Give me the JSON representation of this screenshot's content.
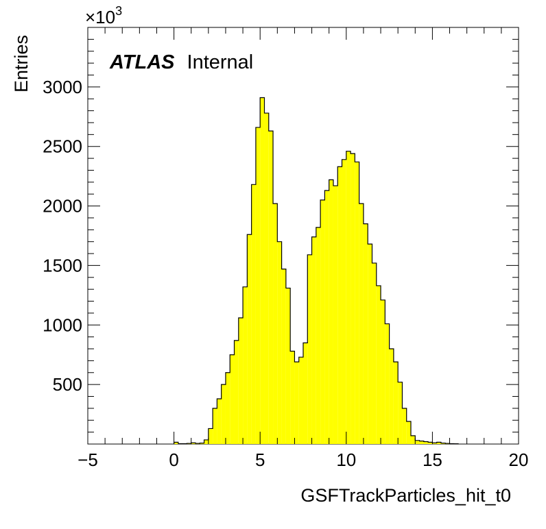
{
  "chart_data": {
    "type": "bar",
    "title": "",
    "xlabel": "GSFTrackParticles_hit_t0",
    "ylabel": "Entries",
    "y_multiplier_label": "×10",
    "y_multiplier_exp": "3",
    "label_bold": "ATLAS",
    "label_normal": "Internal",
    "xlim": [
      -5,
      20
    ],
    "ylim": [
      0,
      3500
    ],
    "bin_width": 0.25,
    "x_ticks": [
      -5,
      0,
      5,
      10,
      15,
      20
    ],
    "x_tick_labels": [
      "−5",
      "0",
      "5",
      "10",
      "15",
      "20"
    ],
    "y_ticks": [
      500,
      1000,
      1500,
      2000,
      2500,
      3000
    ],
    "y_tick_labels": [
      "500",
      "1000",
      "1500",
      "2000",
      "2500",
      "3000"
    ],
    "fill_color": "#ffff00",
    "line_color": "#000000",
    "grid": false,
    "bins_x_low": [
      0,
      0.25,
      0.5,
      0.75,
      1,
      1.25,
      1.5,
      1.75,
      2,
      2.25,
      2.5,
      2.75,
      3,
      3.25,
      3.5,
      3.75,
      4,
      4.25,
      4.5,
      4.75,
      5,
      5.25,
      5.5,
      5.75,
      6,
      6.25,
      6.5,
      6.75,
      7,
      7.25,
      7.5,
      7.75,
      8,
      8.25,
      8.5,
      8.75,
      9,
      9.25,
      9.5,
      9.75,
      10,
      10.25,
      10.5,
      10.75,
      11,
      11.25,
      11.5,
      11.75,
      12,
      12.25,
      12.5,
      12.75,
      13,
      13.25,
      13.5,
      13.75,
      14,
      14.25,
      14.5,
      14.75,
      15,
      15.25,
      15.5,
      15.75,
      16,
      16.25
    ],
    "values": [
      15,
      3,
      3,
      5,
      10,
      5,
      8,
      35,
      130,
      300,
      380,
      500,
      600,
      750,
      870,
      1060,
      1320,
      1760,
      2180,
      2660,
      2910,
      2780,
      2630,
      2020,
      1700,
      1470,
      1310,
      780,
      690,
      730,
      850,
      1590,
      1740,
      1820,
      2050,
      2130,
      2220,
      2170,
      2330,
      2390,
      2460,
      2440,
      2370,
      2020,
      1850,
      1680,
      1520,
      1330,
      1210,
      1010,
      800,
      690,
      520,
      300,
      190,
      70,
      30,
      25,
      20,
      15,
      10,
      15,
      8,
      5,
      3,
      2
    ]
  }
}
